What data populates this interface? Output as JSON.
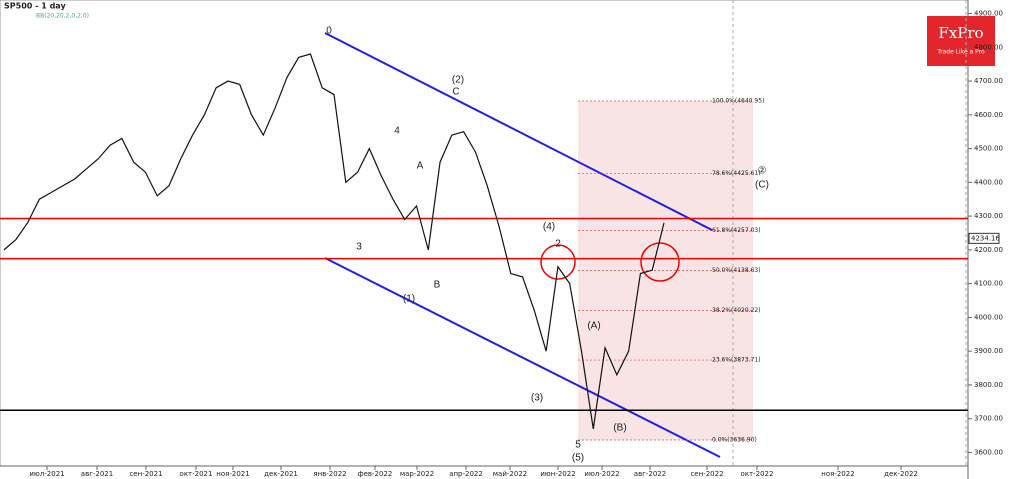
{
  "chart_data": {
    "type": "line",
    "title": "SP500 - 1 day",
    "subtitle": "BB(20,20,2,0,2,0)",
    "brand": "FxPro",
    "tagline": "Trade Like a Pro",
    "color": "#111111",
    "values": [
      4200,
      4230,
      4280,
      4350,
      4370,
      4390,
      4410,
      4440,
      4470,
      4510,
      4530,
      4460,
      4430,
      4360,
      4390,
      4470,
      4540,
      4600,
      4680,
      4700,
      4690,
      4600,
      4540,
      4620,
      4710,
      4770,
      4780,
      4680,
      4660,
      4400,
      4430,
      4500,
      4420,
      4350,
      4290,
      4330,
      4200,
      4460,
      4540,
      4550,
      4490,
      4390,
      4270,
      4130,
      4120,
      4020,
      3900,
      4150,
      4100,
      3900,
      3670,
      3910,
      3830,
      3900,
      4130,
      4140,
      4280
    ],
    "x_labels": [
      "июл-2021",
      "авг-2021",
      "сен-2021",
      "окт-2021",
      "ноя-2021",
      "дек-2021",
      "янв-2022",
      "фев-2022",
      "мар-2022",
      "апр-2022",
      "май-2022",
      "июн-2022",
      "июл-2022",
      "авг-2022",
      "сен-2022",
      "окт-2022",
      "ноя-2022",
      "дек-2022"
    ],
    "ylim": [
      3560,
      4940
    ],
    "yticks": [
      {
        "value": 3600,
        "label": "3600.00"
      },
      {
        "value": 3700,
        "label": "3700.00"
      },
      {
        "value": 3800,
        "label": "3800.00"
      },
      {
        "value": 3900,
        "label": "3900.00"
      },
      {
        "value": 4000,
        "label": "4000.00"
      },
      {
        "value": 4100,
        "label": "4100.00"
      },
      {
        "value": 4200,
        "label": "4200.00"
      },
      {
        "value": 4300,
        "label": "4300.00"
      },
      {
        "value": 4400,
        "label": "4400.00"
      },
      {
        "value": 4500,
        "label": "4500.00"
      },
      {
        "value": 4600,
        "label": "4600.00"
      },
      {
        "value": 4700,
        "label": "4700.00"
      },
      {
        "value": 4800,
        "label": "4800.00"
      },
      {
        "value": 4900,
        "label": "4900.00"
      }
    ],
    "last_price": {
      "value": 4234.16,
      "label": "4234.16"
    },
    "resistance_lines": [
      4293,
      4174
    ],
    "support_line": 3725,
    "fib_levels": [
      {
        "value": 4640.95,
        "label": "100.0%(4640.95)"
      },
      {
        "value": 4425.61,
        "label": "78.6%(4425.61)"
      },
      {
        "value": 4257.03,
        "label": "61.8%(4257.03)"
      },
      {
        "value": 4138.63,
        "label": "50.0%(4138.63)"
      },
      {
        "value": 4020.22,
        "label": "38.2%(4020.22)"
      },
      {
        "value": 3873.71,
        "label": "23.6%(3873.71)"
      },
      {
        "value": 3636.9,
        "label": "0.0%(3636.90)"
      }
    ],
    "annotations": [
      "0",
      "(2)",
      "C",
      "(4)",
      "2",
      "(1)",
      "(3)",
      "(5)",
      "5",
      "(A)",
      "(B)",
      "(C)",
      "②",
      "3",
      "4",
      "A",
      "B"
    ]
  }
}
